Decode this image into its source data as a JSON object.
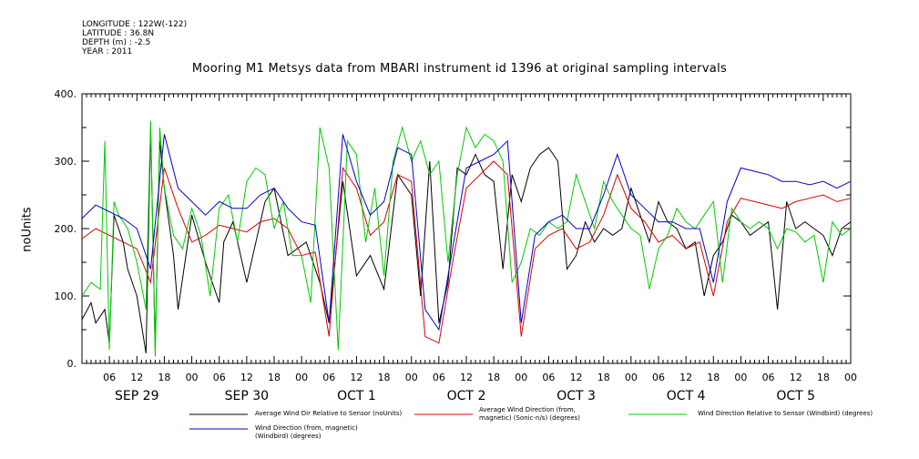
{
  "meta": {
    "longitude": "LONGITUDE : 122W(-122)",
    "latitude": "LATITUDE : 36.8N",
    "depth": "DEPTH (m) : -2.5",
    "year": "YEAR : 2011"
  },
  "chart_data": {
    "type": "line",
    "title": "Mooring M1 Metsys data from MBARI instrument id 1396 at original sampling intervals",
    "ylabel": "noUnits",
    "ylim": [
      0,
      400
    ],
    "xlim_hours": [
      0,
      168
    ],
    "x_unit": "hours since 2011-09-29 00:00",
    "y_ticks": [
      "0.",
      "100.",
      "200.",
      "300.",
      "400."
    ],
    "x_hour_ticks": [
      "06",
      "12",
      "18",
      "00",
      "06",
      "12",
      "18",
      "00",
      "06",
      "12",
      "18",
      "00",
      "06",
      "12",
      "18",
      "00",
      "06",
      "12",
      "18",
      "00",
      "06",
      "12",
      "18",
      "00",
      "06",
      "12",
      "18",
      "00"
    ],
    "date_labels": [
      "SEP 29",
      "SEP 30",
      "OCT 1",
      "OCT 2",
      "OCT 3",
      "OCT 4",
      "OCT 5"
    ],
    "grid": false,
    "legend_position": "bottom",
    "series": [
      {
        "name": "Average Wind Dir Relative to Sensor (noUnits)",
        "color": "#000000",
        "x": [
          0,
          2,
          3,
          5,
          6,
          7,
          8,
          9,
          10,
          12,
          14,
          15,
          16,
          17,
          18,
          20,
          21,
          24,
          27,
          30,
          31,
          33,
          36,
          40,
          42,
          45,
          49,
          52,
          54,
          57,
          60,
          63,
          66,
          69,
          72,
          74,
          76,
          78,
          80,
          82,
          84,
          86,
          88,
          90,
          92,
          94,
          96,
          98,
          100,
          102,
          104,
          106,
          108,
          110,
          112,
          114,
          116,
          118,
          120,
          122,
          124,
          126,
          128,
          130,
          132,
          134,
          136,
          138,
          140,
          142,
          144,
          146,
          148,
          150,
          152,
          154,
          156,
          158,
          160,
          162,
          164,
          166,
          168
        ],
        "y": [
          65,
          90,
          60,
          80,
          30,
          220,
          200,
          180,
          140,
          100,
          15,
          350,
          20,
          330,
          260,
          160,
          80,
          220,
          150,
          90,
          180,
          210,
          120,
          240,
          260,
          160,
          180,
          120,
          60,
          270,
          130,
          160,
          110,
          280,
          250,
          100,
          300,
          60,
          120,
          290,
          280,
          310,
          280,
          270,
          140,
          280,
          240,
          290,
          310,
          320,
          300,
          140,
          160,
          210,
          180,
          200,
          190,
          200,
          260,
          220,
          180,
          240,
          210,
          200,
          170,
          180,
          100,
          160,
          180,
          220,
          210,
          190,
          200,
          210,
          80,
          240,
          200,
          210,
          200,
          190,
          160,
          200,
          210
        ]
      },
      {
        "name": "Average Wind Direction (from, magnetic) (Sonic-n/s) (degrees)",
        "color": "#dd0000",
        "x": [
          0,
          3,
          6,
          9,
          12,
          15,
          18,
          21,
          24,
          27,
          30,
          33,
          36,
          39,
          42,
          45,
          48,
          51,
          54,
          57,
          60,
          63,
          66,
          69,
          72,
          75,
          78,
          81,
          84,
          87,
          90,
          93,
          96,
          99,
          102,
          105,
          108,
          111,
          114,
          117,
          120,
          123,
          126,
          129,
          132,
          135,
          138,
          141,
          144,
          147,
          150,
          153,
          156,
          159,
          162,
          165,
          168
        ],
        "y": [
          185,
          200,
          190,
          180,
          170,
          120,
          290,
          230,
          180,
          190,
          205,
          200,
          195,
          210,
          215,
          200,
          160,
          165,
          40,
          290,
          260,
          190,
          210,
          280,
          270,
          40,
          30,
          150,
          260,
          280,
          300,
          280,
          40,
          170,
          190,
          200,
          170,
          180,
          220,
          280,
          230,
          210,
          180,
          190,
          170,
          180,
          100,
          210,
          245,
          240,
          235,
          230,
          240,
          245,
          250,
          240,
          245
        ]
      },
      {
        "name": "Wind Direction Relative to Sensor (Windbird) (degrees)",
        "color": "#00cc00",
        "x": [
          0,
          2,
          4,
          5,
          6,
          7,
          8,
          10,
          12,
          14,
          15,
          16,
          17,
          18,
          20,
          22,
          24,
          26,
          28,
          30,
          32,
          34,
          36,
          38,
          40,
          42,
          44,
          46,
          48,
          50,
          52,
          54,
          56,
          58,
          60,
          62,
          64,
          66,
          68,
          70,
          72,
          74,
          76,
          78,
          80,
          82,
          84,
          86,
          88,
          90,
          92,
          94,
          96,
          98,
          100,
          102,
          104,
          106,
          108,
          110,
          112,
          114,
          116,
          118,
          120,
          122,
          124,
          126,
          128,
          130,
          132,
          134,
          136,
          138,
          140,
          142,
          144,
          146,
          148,
          150,
          152,
          154,
          156,
          158,
          160,
          162,
          164,
          166,
          168
        ],
        "y": [
          100,
          120,
          110,
          330,
          20,
          240,
          220,
          200,
          150,
          80,
          360,
          10,
          350,
          260,
          190,
          170,
          230,
          190,
          100,
          230,
          250,
          180,
          270,
          290,
          280,
          200,
          240,
          160,
          160,
          90,
          350,
          290,
          20,
          330,
          310,
          180,
          260,
          130,
          300,
          350,
          300,
          330,
          280,
          300,
          150,
          280,
          350,
          320,
          340,
          330,
          300,
          120,
          150,
          200,
          190,
          210,
          200,
          210,
          280,
          240,
          200,
          270,
          240,
          220,
          200,
          190,
          110,
          170,
          190,
          230,
          210,
          200,
          220,
          240,
          120,
          230,
          210,
          200,
          210,
          200,
          170,
          200,
          195,
          180,
          190,
          120,
          210,
          190,
          200
        ]
      },
      {
        "name": "Wind Direction (from, magnetic) (Windbird) (degrees)",
        "color": "#0000cc",
        "x": [
          0,
          3,
          6,
          9,
          12,
          15,
          18,
          21,
          24,
          27,
          30,
          33,
          36,
          39,
          42,
          45,
          48,
          51,
          54,
          57,
          60,
          63,
          66,
          69,
          72,
          75,
          78,
          81,
          84,
          87,
          90,
          93,
          96,
          99,
          102,
          105,
          108,
          111,
          114,
          117,
          120,
          123,
          126,
          129,
          132,
          135,
          138,
          141,
          144,
          147,
          150,
          153,
          156,
          159,
          162,
          165,
          168
        ],
        "y": [
          215,
          235,
          225,
          215,
          200,
          140,
          340,
          260,
          240,
          220,
          240,
          230,
          230,
          250,
          260,
          230,
          210,
          205,
          60,
          340,
          270,
          220,
          240,
          320,
          310,
          80,
          50,
          170,
          290,
          300,
          310,
          330,
          60,
          190,
          210,
          220,
          200,
          200,
          250,
          310,
          250,
          230,
          210,
          210,
          200,
          200,
          120,
          240,
          290,
          285,
          280,
          270,
          270,
          265,
          270,
          260,
          270
        ]
      }
    ]
  }
}
